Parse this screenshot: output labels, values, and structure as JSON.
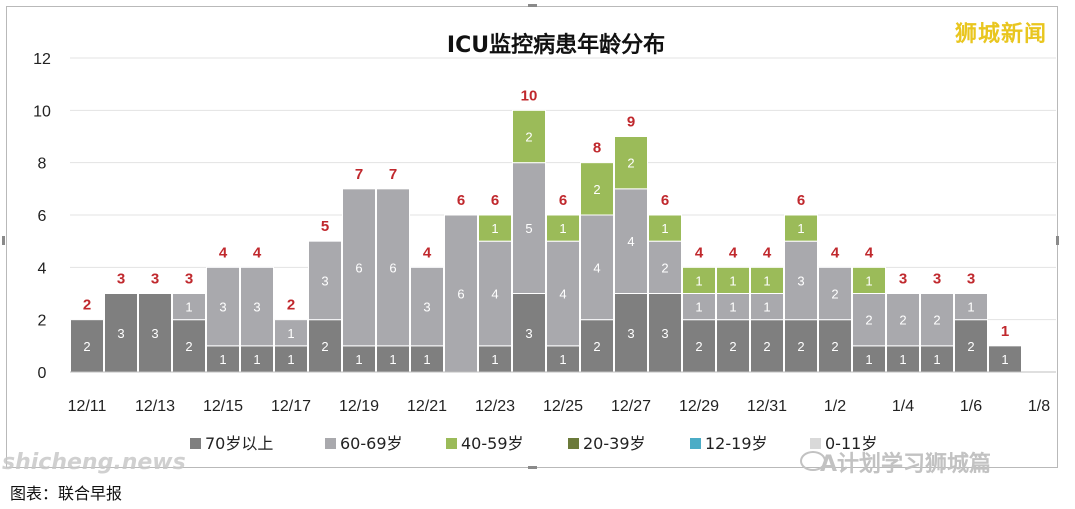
{
  "brand": "狮城新闻",
  "watermark_left": "shicheng.news",
  "watermark_right": "A计划学习狮城篇",
  "caption": "图表：联合早报",
  "chart_data": {
    "type": "bar",
    "stacked": true,
    "title": "ICU监控病患年龄分布",
    "ylim": [
      0,
      12
    ],
    "yticks": [
      "0",
      "2",
      "4",
      "6",
      "8",
      "10",
      "12"
    ],
    "grid": true,
    "legend_position": "bottom",
    "categories": [
      "12/11",
      "12/12",
      "12/13",
      "12/14",
      "12/15",
      "12/16",
      "12/17",
      "12/18",
      "12/19",
      "12/20",
      "12/21",
      "12/22",
      "12/23",
      "12/24",
      "12/25",
      "12/26",
      "12/27",
      "12/28",
      "12/29",
      "12/30",
      "12/31",
      "1/1",
      "1/2",
      "1/3",
      "1/4",
      "1/5",
      "1/6",
      "1/7",
      "1/8"
    ],
    "x_tick_labels": [
      "12/11",
      "12/13",
      "12/15",
      "12/17",
      "12/19",
      "12/21",
      "12/23",
      "12/25",
      "12/27",
      "12/29",
      "12/31",
      "1/2",
      "1/4",
      "1/6",
      "1/8"
    ],
    "series": [
      {
        "name": "70岁以上",
        "color": "#7f7f7f",
        "values": [
          2,
          3,
          3,
          2,
          1,
          1,
          1,
          2,
          1,
          1,
          1,
          0,
          1,
          3,
          1,
          2,
          3,
          3,
          2,
          2,
          2,
          2,
          2,
          1,
          1,
          1,
          2,
          1,
          0
        ]
      },
      {
        "name": "60-69岁",
        "color": "#a9a9ad",
        "values": [
          0,
          0,
          0,
          1,
          3,
          3,
          1,
          3,
          6,
          6,
          3,
          6,
          4,
          5,
          4,
          4,
          4,
          2,
          1,
          1,
          1,
          3,
          2,
          2,
          2,
          2,
          1,
          0,
          0
        ]
      },
      {
        "name": "40-59岁",
        "color": "#9bbb59",
        "values": [
          0,
          0,
          0,
          0,
          0,
          0,
          0,
          0,
          0,
          0,
          0,
          0,
          1,
          2,
          1,
          2,
          2,
          1,
          1,
          1,
          1,
          1,
          0,
          1,
          0,
          0,
          0,
          0,
          0
        ]
      },
      {
        "name": "20-39岁",
        "color": "#6b7a3a",
        "values": [
          0,
          0,
          0,
          0,
          0,
          0,
          0,
          0,
          0,
          0,
          0,
          0,
          0,
          0,
          0,
          0,
          0,
          0,
          0,
          0,
          0,
          0,
          0,
          0,
          0,
          0,
          0,
          0,
          0
        ]
      },
      {
        "name": "12-19岁",
        "color": "#4bacc6",
        "values": [
          0,
          0,
          0,
          0,
          0,
          0,
          0,
          0,
          0,
          0,
          0,
          0,
          0,
          0,
          0,
          0,
          0,
          0,
          0,
          0,
          0,
          0,
          0,
          0,
          0,
          0,
          0,
          0,
          0
        ]
      },
      {
        "name": "0-11岁",
        "color": "#d9d9d9",
        "values": [
          0,
          0,
          0,
          0,
          0,
          0,
          0,
          0,
          0,
          0,
          0,
          0,
          0,
          0,
          0,
          0,
          0,
          0,
          0,
          0,
          0,
          0,
          0,
          0,
          0,
          0,
          0,
          0,
          0
        ]
      }
    ],
    "totals": [
      2,
      3,
      3,
      3,
      4,
      4,
      2,
      5,
      7,
      7,
      4,
      6,
      6,
      10,
      6,
      8,
      9,
      6,
      4,
      4,
      4,
      6,
      4,
      4,
      3,
      3,
      3,
      1,
      0
    ],
    "total_label_color": "#c0282d"
  }
}
